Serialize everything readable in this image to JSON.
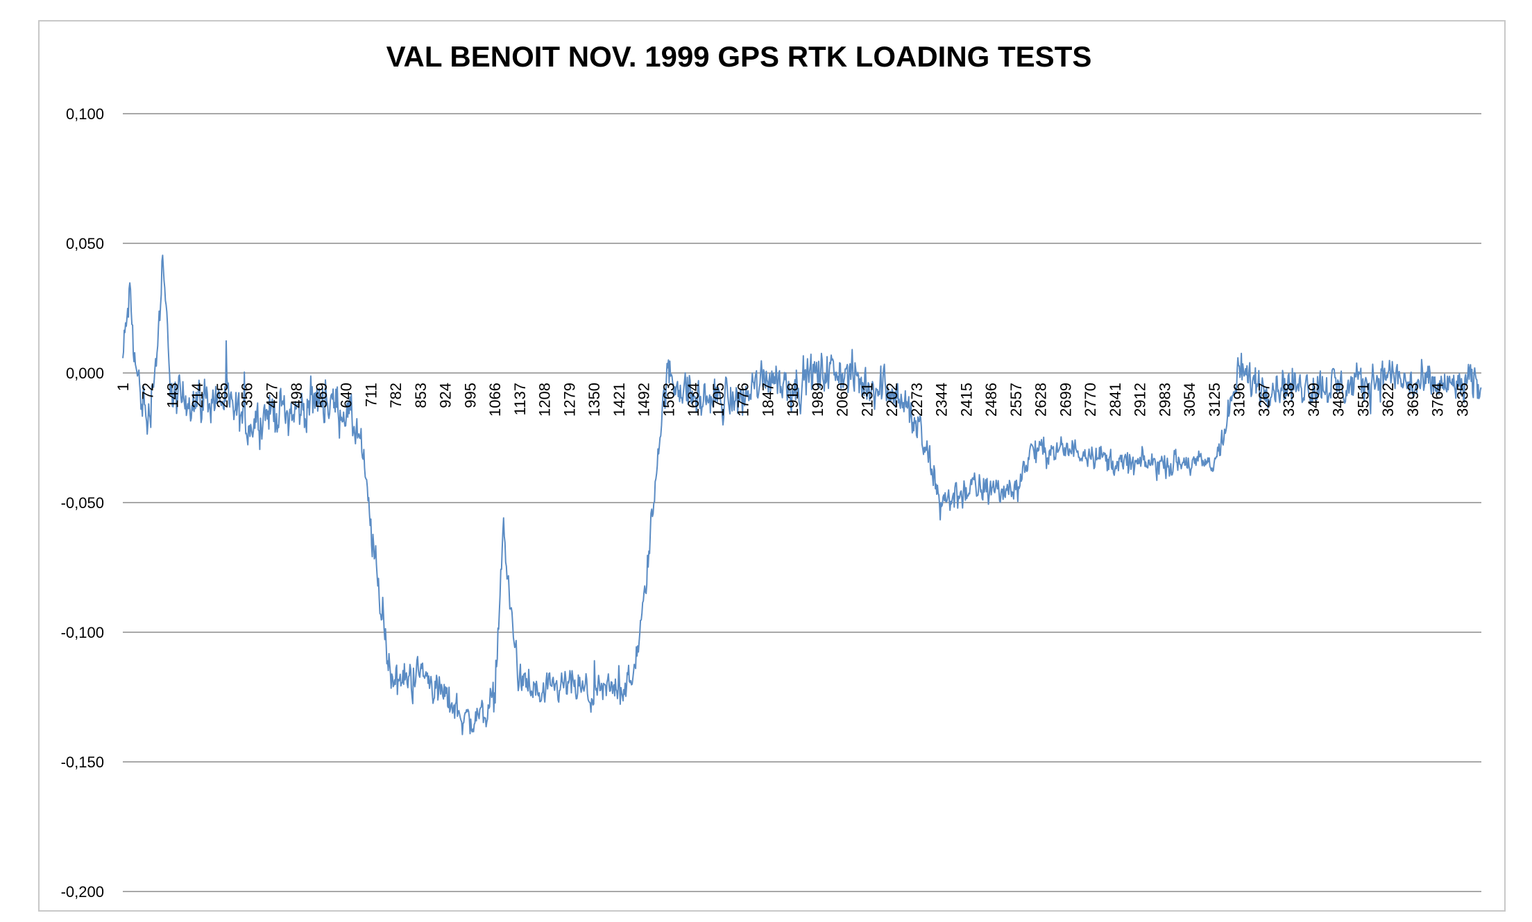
{
  "chart_data": {
    "type": "line",
    "title": "VAL BENOIT  NOV. 1999 GPS RTK LOADING TESTS",
    "xlabel": "",
    "ylabel": "",
    "ylim": [
      -0.2,
      0.1
    ],
    "xlim": [
      1,
      3890
    ],
    "grid": "horizontal",
    "legend": "none",
    "line_color": "#5b8cc4",
    "y_ticks": [
      {
        "value": 0.1,
        "label": "0,100"
      },
      {
        "value": 0.05,
        "label": "0,050"
      },
      {
        "value": 0.0,
        "label": "0,000"
      },
      {
        "value": -0.05,
        "label": "-0,050"
      },
      {
        "value": -0.1,
        "label": "-0,100"
      },
      {
        "value": -0.15,
        "label": "-0,150"
      },
      {
        "value": -0.2,
        "label": "-0,200"
      }
    ],
    "x_ticks": [
      "1",
      "72",
      "143",
      "214",
      "285",
      "356",
      "427",
      "498",
      "569",
      "640",
      "711",
      "782",
      "853",
      "924",
      "995",
      "1066",
      "1137",
      "1208",
      "1279",
      "1350",
      "1421",
      "1492",
      "1563",
      "1634",
      "1705",
      "1776",
      "1847",
      "1918",
      "1989",
      "2060",
      "2131",
      "2202",
      "2273",
      "2344",
      "2415",
      "2486",
      "2557",
      "2628",
      "2699",
      "2770",
      "2841",
      "2912",
      "2983",
      "3054",
      "3125",
      "3196",
      "3267",
      "3338",
      "3409",
      "3480",
      "3551",
      "3622",
      "3693",
      "3764",
      "3835"
    ],
    "series": [
      {
        "values": [
          {
            "x": 1,
            "y": 0.005
          },
          {
            "x": 20,
            "y": 0.03
          },
          {
            "x": 40,
            "y": 0.0
          },
          {
            "x": 72,
            "y": -0.02
          },
          {
            "x": 100,
            "y": 0.01
          },
          {
            "x": 115,
            "y": 0.04
          },
          {
            "x": 143,
            "y": -0.01
          },
          {
            "x": 214,
            "y": -0.01
          },
          {
            "x": 285,
            "y": -0.01
          },
          {
            "x": 356,
            "y": -0.02
          },
          {
            "x": 427,
            "y": -0.015
          },
          {
            "x": 498,
            "y": -0.015
          },
          {
            "x": 569,
            "y": -0.01
          },
          {
            "x": 640,
            "y": -0.015
          },
          {
            "x": 680,
            "y": -0.025
          },
          {
            "x": 711,
            "y": -0.06
          },
          {
            "x": 740,
            "y": -0.09
          },
          {
            "x": 760,
            "y": -0.11
          },
          {
            "x": 782,
            "y": -0.12
          },
          {
            "x": 853,
            "y": -0.115
          },
          {
            "x": 924,
            "y": -0.125
          },
          {
            "x": 995,
            "y": -0.135
          },
          {
            "x": 1040,
            "y": -0.13
          },
          {
            "x": 1066,
            "y": -0.125
          },
          {
            "x": 1090,
            "y": -0.06
          },
          {
            "x": 1110,
            "y": -0.09
          },
          {
            "x": 1137,
            "y": -0.12
          },
          {
            "x": 1208,
            "y": -0.125
          },
          {
            "x": 1279,
            "y": -0.12
          },
          {
            "x": 1350,
            "y": -0.125
          },
          {
            "x": 1421,
            "y": -0.12
          },
          {
            "x": 1460,
            "y": -0.12
          },
          {
            "x": 1492,
            "y": -0.09
          },
          {
            "x": 1520,
            "y": -0.05
          },
          {
            "x": 1540,
            "y": -0.02
          },
          {
            "x": 1563,
            "y": 0.0
          },
          {
            "x": 1634,
            "y": -0.01
          },
          {
            "x": 1705,
            "y": -0.01
          },
          {
            "x": 1776,
            "y": -0.01
          },
          {
            "x": 1847,
            "y": 0.0
          },
          {
            "x": 1918,
            "y": -0.005
          },
          {
            "x": 1989,
            "y": 0.0
          },
          {
            "x": 2060,
            "y": 0.0
          },
          {
            "x": 2131,
            "y": -0.005
          },
          {
            "x": 2202,
            "y": -0.005
          },
          {
            "x": 2273,
            "y": -0.02
          },
          {
            "x": 2310,
            "y": -0.035
          },
          {
            "x": 2344,
            "y": -0.05
          },
          {
            "x": 2415,
            "y": -0.045
          },
          {
            "x": 2486,
            "y": -0.045
          },
          {
            "x": 2557,
            "y": -0.045
          },
          {
            "x": 2600,
            "y": -0.03
          },
          {
            "x": 2628,
            "y": -0.03
          },
          {
            "x": 2699,
            "y": -0.03
          },
          {
            "x": 2770,
            "y": -0.03
          },
          {
            "x": 2841,
            "y": -0.035
          },
          {
            "x": 2912,
            "y": -0.035
          },
          {
            "x": 2983,
            "y": -0.035
          },
          {
            "x": 3054,
            "y": -0.035
          },
          {
            "x": 3125,
            "y": -0.035
          },
          {
            "x": 3160,
            "y": -0.02
          },
          {
            "x": 3196,
            "y": 0.0
          },
          {
            "x": 3267,
            "y": -0.005
          },
          {
            "x": 3338,
            "y": -0.005
          },
          {
            "x": 3409,
            "y": -0.005
          },
          {
            "x": 3480,
            "y": -0.005
          },
          {
            "x": 3551,
            "y": -0.005
          },
          {
            "x": 3622,
            "y": 0.0
          },
          {
            "x": 3693,
            "y": -0.005
          },
          {
            "x": 3764,
            "y": -0.005
          },
          {
            "x": 3835,
            "y": -0.005
          },
          {
            "x": 3890,
            "y": -0.005
          }
        ],
        "noise_amplitude": [
          {
            "x": 1,
            "a": 0.018
          },
          {
            "x": 700,
            "a": 0.018
          },
          {
            "x": 760,
            "a": 0.015
          },
          {
            "x": 1500,
            "a": 0.013
          },
          {
            "x": 1563,
            "a": 0.016
          },
          {
            "x": 2273,
            "a": 0.018
          },
          {
            "x": 2344,
            "a": 0.015
          },
          {
            "x": 2628,
            "a": 0.011
          },
          {
            "x": 3125,
            "a": 0.01
          },
          {
            "x": 3196,
            "a": 0.016
          },
          {
            "x": 3890,
            "a": 0.016
          }
        ]
      }
    ]
  }
}
